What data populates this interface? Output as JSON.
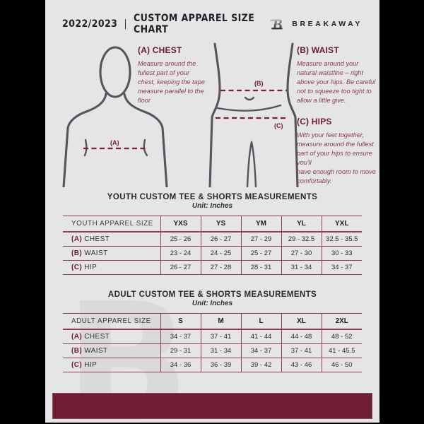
{
  "header": {
    "title_year": "2022/2023",
    "title_divider": "|",
    "title_main": "CUSTOM APPAREL SIZE CHART",
    "brand": "BREAKAWAY",
    "logo_letter": "B"
  },
  "measure_guide": {
    "chest": {
      "heading": "(A) CHEST",
      "body": "Measure around the fullest part of your chest, keeping the tape measure parallel to the floor",
      "marker": "(A)"
    },
    "waist": {
      "heading": "(B) WAIST",
      "body": "Measure around your natural waistline – right above your hips. Be careful not to squeeze too tight to allow a little give.",
      "marker": "(B)"
    },
    "hips": {
      "heading": "(C) HIPS",
      "body": "With your feet together, measure around the fullest part of your hips to ensure you'll\nhave enough room to move comfortably.",
      "marker": "(C)"
    }
  },
  "tables": [
    {
      "id": "youth",
      "title": "YOUTH CUSTOM TEE & SHORTS MEASUREMENTS",
      "unit": "Unit: Inches",
      "label_header": "YOUTH APPAREL SIZE",
      "columns": [
        "YXS",
        "YS",
        "YM",
        "YL",
        "YXL"
      ],
      "rows": [
        {
          "prefix": "(A)",
          "label": "CHEST",
          "values": [
            "25 - 26",
            "26 - 27",
            "27 - 29",
            "29 - 32.5",
            "32.5 - 35.5"
          ]
        },
        {
          "prefix": "(B)",
          "label": "WAIST",
          "values": [
            "23 - 24",
            "24 - 25",
            "25 - 27",
            "27 - 30",
            "30 - 33"
          ]
        },
        {
          "prefix": "(C)",
          "label": "HIP",
          "values": [
            "26 - 27",
            "27 - 28",
            "28 - 31",
            "31 - 34",
            "34 - 37"
          ]
        }
      ]
    },
    {
      "id": "adult",
      "title": "ADULT CUSTOM TEE & SHORTS MEASUREMENTS",
      "unit": "Unit: Inches",
      "label_header": "ADULT APPAREL SIZE",
      "columns": [
        "S",
        "M",
        "L",
        "XL",
        "2XL"
      ],
      "rows": [
        {
          "prefix": "(A)",
          "label": "CHEST",
          "values": [
            "34 - 37",
            "37 - 41",
            "41 - 44",
            "44 - 48",
            "48 - 52"
          ]
        },
        {
          "prefix": "(B)",
          "label": "WAIST",
          "values": [
            "29 - 31",
            "31 - 34",
            "34 - 37",
            "37 - 41",
            "41 - 45.5"
          ]
        },
        {
          "prefix": "(C)",
          "label": "HIP",
          "values": [
            "34 - 36",
            "36 - 39",
            "39 - 42",
            "43 - 46",
            "46 - 50"
          ]
        }
      ]
    }
  ],
  "colors": {
    "page_bg": "#e5e5e7",
    "letterbox": "#000000",
    "maroon_heading": "#6b1c34",
    "maroon_footer": "#6e1d33",
    "table_line": "#8e3d57",
    "dash_line": "#7a1f39",
    "figure_stroke": "#55555a"
  }
}
